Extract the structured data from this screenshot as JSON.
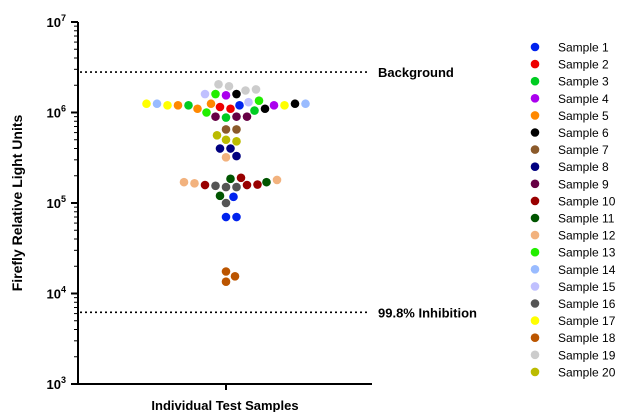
{
  "chart_data": {
    "type": "scatter",
    "ylabel": "Firefly  Relative Light Units",
    "xlabel": "Individual Test Samples",
    "y_scale": "log",
    "ylim": [
      1000,
      10000000
    ],
    "y_ticks": [
      {
        "value": 1000,
        "base": "10",
        "exp": "3"
      },
      {
        "value": 10000,
        "base": "10",
        "exp": "4"
      },
      {
        "value": 100000,
        "base": "10",
        "exp": "5"
      },
      {
        "value": 1000000,
        "base": "10",
        "exp": "6"
      },
      {
        "value": 10000000,
        "base": "10",
        "exp": "7"
      }
    ],
    "reference_lines": [
      {
        "label": "Background",
        "y": 2800000
      },
      {
        "label": "99.8% Inhibition",
        "y": 6200
      }
    ],
    "legend_position": "right",
    "grid": false,
    "series": [
      {
        "name": "Sample 1",
        "color": "#0022ee",
        "values": [
          1200000,
          117000,
          70000,
          70000
        ]
      },
      {
        "name": "Sample 2",
        "color": "#ee0000",
        "values": [
          1150000,
          1100000
        ]
      },
      {
        "name": "Sample 3",
        "color": "#00cc22",
        "values": [
          1200000,
          1050000,
          880000
        ]
      },
      {
        "name": "Sample 4",
        "color": "#aa00ee",
        "values": [
          1200000,
          1550000
        ]
      },
      {
        "name": "Sample 5",
        "color": "#ff8800",
        "values": [
          1250000,
          1200000,
          1100000
        ]
      },
      {
        "name": "Sample 6",
        "color": "#000000",
        "values": [
          1250000,
          1100000,
          1600000
        ]
      },
      {
        "name": "Sample 7",
        "color": "#8b5a2b",
        "values": [
          650000,
          650000
        ]
      },
      {
        "name": "Sample 8",
        "color": "#000080",
        "values": [
          400000,
          400000,
          330000
        ]
      },
      {
        "name": "Sample 9",
        "color": "#660044",
        "values": [
          900000,
          900000,
          900000
        ]
      },
      {
        "name": "Sample 10",
        "color": "#990000",
        "values": [
          190000,
          158000,
          158000,
          160000
        ]
      },
      {
        "name": "Sample 11",
        "color": "#005500",
        "values": [
          170000,
          185000,
          120000
        ]
      },
      {
        "name": "Sample 12",
        "color": "#f2b27e",
        "values": [
          180000,
          170000,
          165000,
          320000
        ]
      },
      {
        "name": "Sample 13",
        "color": "#22ee00",
        "values": [
          1600000,
          1000000,
          1350000
        ]
      },
      {
        "name": "Sample 14",
        "color": "#99bbff",
        "values": [
          1250000,
          1250000
        ]
      },
      {
        "name": "Sample 15",
        "color": "#c0c0ff",
        "values": [
          1300000,
          1600000
        ]
      },
      {
        "name": "Sample 16",
        "color": "#555555",
        "values": [
          150000,
          150000,
          155000,
          100000
        ]
      },
      {
        "name": "Sample 17",
        "color": "#ffff00",
        "values": [
          1200000,
          1200000,
          1250000
        ]
      },
      {
        "name": "Sample 18",
        "color": "#bb5500",
        "values": [
          17500,
          15500,
          13500
        ]
      },
      {
        "name": "Sample 19",
        "color": "#cccccc",
        "values": [
          1800000,
          1750000,
          1950000,
          2050000
        ]
      },
      {
        "name": "Sample 20",
        "color": "#bbbb00",
        "values": [
          500000,
          560000,
          480000
        ]
      }
    ]
  }
}
